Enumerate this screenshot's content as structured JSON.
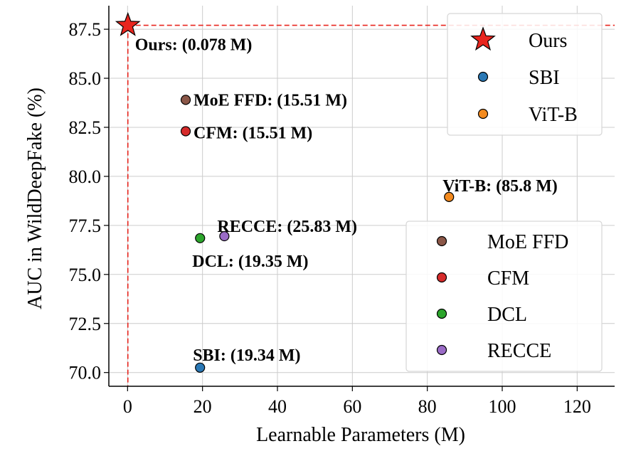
{
  "chart_data": {
    "type": "scatter",
    "title": "",
    "xlabel": "Learnable Parameters (M)",
    "ylabel": "AUC in WildDeepFake (%)",
    "xlim": [
      -5,
      130
    ],
    "ylim": [
      69.3,
      88.7
    ],
    "xticks": [
      0,
      20,
      40,
      60,
      80,
      100,
      120
    ],
    "xtick_labels": [
      "0",
      "20",
      "40",
      "60",
      "80",
      "100",
      "120"
    ],
    "yticks": [
      70.0,
      72.5,
      75.0,
      77.5,
      80.0,
      82.5,
      85.0,
      87.5
    ],
    "ytick_labels": [
      "70.0",
      "72.5",
      "75.0",
      "77.5",
      "80.0",
      "82.5",
      "85.0",
      "87.5"
    ],
    "grid": true,
    "reference_lines": {
      "x": 0.078,
      "y": 87.7,
      "color": "#e8251e",
      "style": "dashed"
    },
    "points": [
      {
        "name": "Ours",
        "x": 0.078,
        "y": 87.7,
        "color": "#e8251e",
        "marker": "star",
        "label": "Ours: (0.078 M)"
      },
      {
        "name": "SBI",
        "x": 19.34,
        "y": 70.25,
        "color": "#2a78b5",
        "marker": "circle",
        "label": "SBI: (19.34 M)"
      },
      {
        "name": "ViT-B",
        "x": 85.8,
        "y": 78.95,
        "color": "#f38a1e",
        "marker": "circle",
        "label": "ViT-B: (85.8 M)"
      },
      {
        "name": "MoE FFD",
        "x": 15.51,
        "y": 83.9,
        "color": "#8b5748",
        "marker": "circle",
        "label": "MoE FFD: (15.51 M)"
      },
      {
        "name": "CFM",
        "x": 15.51,
        "y": 82.3,
        "color": "#d62b2b",
        "marker": "circle",
        "label": "CFM: (15.51 M)"
      },
      {
        "name": "DCL",
        "x": 19.35,
        "y": 76.85,
        "color": "#2ca52c",
        "marker": "circle",
        "label": "DCL: (19.35 M)"
      },
      {
        "name": "RECCE",
        "x": 25.83,
        "y": 76.95,
        "color": "#9a6bc6",
        "marker": "circle",
        "label": "RECCE: (25.83 M)"
      }
    ],
    "legends": [
      {
        "location": "top-right",
        "entries": [
          "Ours",
          "SBI",
          "ViT-B"
        ]
      },
      {
        "location": "bottom-right",
        "entries": [
          "MoE FFD",
          "CFM",
          "DCL",
          "RECCE"
        ]
      }
    ]
  }
}
